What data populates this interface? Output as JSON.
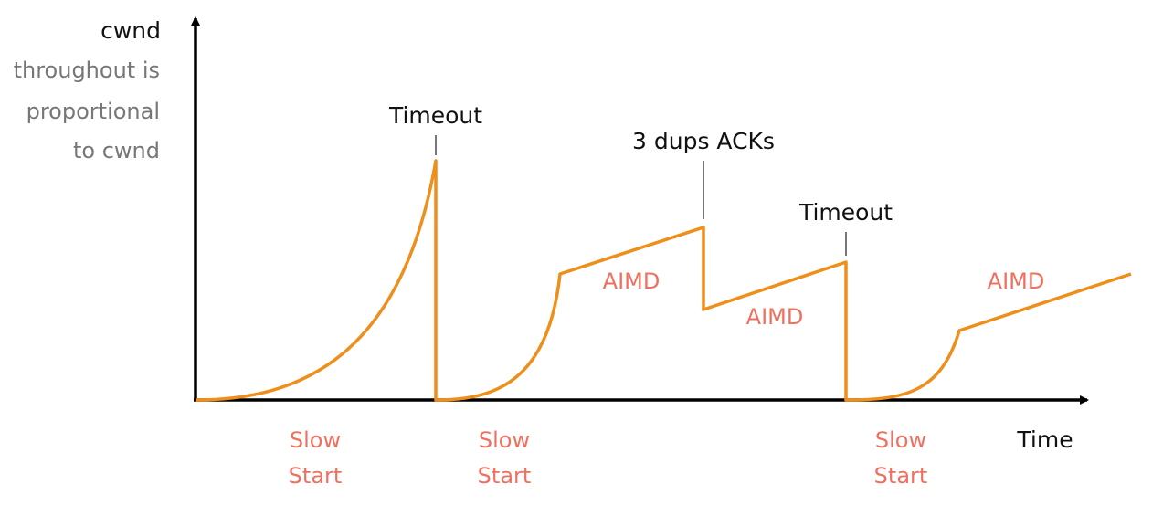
{
  "colors": {
    "axis": "#000000",
    "curve": "#ee8f1c",
    "phase_label": "#f07060",
    "event_label": "#111111",
    "marker": "#777777",
    "note": "#777777"
  },
  "y_axis": {
    "label": "cwnd",
    "note": [
      "throughout is",
      "proportional",
      "to cwnd"
    ]
  },
  "x_axis": {
    "label": "Time"
  },
  "events": [
    {
      "label": "Timeout"
    },
    {
      "label": "3 dups ACKs"
    },
    {
      "label": "Timeout"
    }
  ],
  "phases": {
    "slow_start": [
      {
        "line1": "Slow",
        "line2": "Start"
      },
      {
        "line1": "Slow",
        "line2": "Start"
      },
      {
        "line1": "Slow",
        "line2": "Start"
      }
    ],
    "aimd": [
      {
        "label": "AIMD"
      },
      {
        "label": "AIMD"
      },
      {
        "label": "AIMD"
      }
    ]
  }
}
